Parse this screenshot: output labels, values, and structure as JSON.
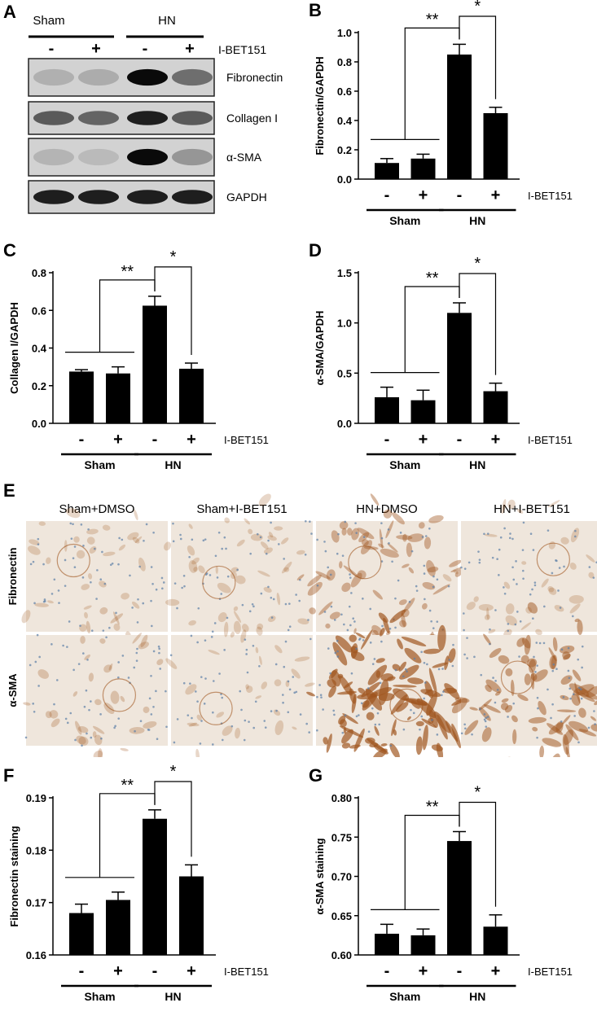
{
  "panels": {
    "A": {
      "letter": "A",
      "groups": [
        "Sham",
        "HN"
      ],
      "treatment_label": "I-BET151",
      "treatment_signs": [
        "-",
        "+",
        "-",
        "+"
      ],
      "bands": [
        "Fibronectin",
        "Collagen I",
        "α-SMA",
        "GAPDH"
      ],
      "band_intensity": [
        [
          0.12,
          0.14,
          0.95,
          0.45
        ],
        [
          0.55,
          0.5,
          0.85,
          0.55
        ],
        [
          0.1,
          0.07,
          0.95,
          0.25
        ],
        [
          0.85,
          0.85,
          0.85,
          0.85
        ]
      ]
    },
    "E": {
      "letter": "E",
      "columns": [
        "Sham+DMSO",
        "Sham+I-BET151",
        "HN+DMSO",
        "HN+I-BET151"
      ],
      "rows": [
        "Fibronectin",
        "α-SMA"
      ],
      "stain_level": [
        [
          0.15,
          0.15,
          0.45,
          0.15
        ],
        [
          0.2,
          0.15,
          0.9,
          0.6
        ]
      ],
      "colors": {
        "tissue": "#efe6dc",
        "stain": "#a0561f",
        "nuclei": "#5d7fa6"
      }
    }
  },
  "chart_data": [
    {
      "id": "B",
      "letter": "B",
      "type": "bar",
      "ylabel": "Fibronectin/GAPDH",
      "ylim": [
        0,
        1.0
      ],
      "yticks": [
        "0.0",
        "0.2",
        "0.4",
        "0.6",
        "0.8",
        "1.0"
      ],
      "values": [
        0.11,
        0.14,
        0.85,
        0.45
      ],
      "errors": [
        0.03,
        0.03,
        0.07,
        0.04
      ],
      "signs": [
        "-",
        "+",
        "-",
        "+"
      ],
      "treatment_label": "I-BET151",
      "groups": [
        "Sham",
        "HN"
      ],
      "sig": [
        "**",
        "*"
      ]
    },
    {
      "id": "C",
      "letter": "C",
      "type": "bar",
      "ylabel": "Collagen I/GAPDH",
      "ylim": [
        0,
        0.8
      ],
      "yticks": [
        "0.0",
        "0.2",
        "0.4",
        "0.6",
        "0.8"
      ],
      "values": [
        0.275,
        0.265,
        0.625,
        0.29
      ],
      "errors": [
        0.01,
        0.035,
        0.05,
        0.03
      ],
      "signs": [
        "-",
        "+",
        "-",
        "+"
      ],
      "treatment_label": "I-BET151",
      "groups": [
        "Sham",
        "HN"
      ],
      "sig": [
        "**",
        "*"
      ]
    },
    {
      "id": "D",
      "letter": "D",
      "type": "bar",
      "ylabel": "α-SMA/GAPDH",
      "ylim": [
        0,
        1.5
      ],
      "yticks": [
        "0.0",
        "0.5",
        "1.0",
        "1.5"
      ],
      "values": [
        0.26,
        0.23,
        1.1,
        0.32
      ],
      "errors": [
        0.1,
        0.1,
        0.1,
        0.08
      ],
      "signs": [
        "-",
        "+",
        "-",
        "+"
      ],
      "treatment_label": "I-BET151",
      "groups": [
        "Sham",
        "HN"
      ],
      "sig": [
        "**",
        "*"
      ]
    },
    {
      "id": "F",
      "letter": "F",
      "type": "bar",
      "ylabel": "Fibronectin staining",
      "ylim": [
        0.16,
        0.19
      ],
      "yticks": [
        "0.16",
        "0.17",
        "0.18",
        "0.19"
      ],
      "values": [
        0.168,
        0.1705,
        0.186,
        0.175
      ],
      "errors": [
        0.0017,
        0.0015,
        0.0017,
        0.0022
      ],
      "signs": [
        "-",
        "+",
        "-",
        "+"
      ],
      "treatment_label": "I-BET151",
      "groups": [
        "Sham",
        "HN"
      ],
      "sig": [
        "**",
        "*"
      ]
    },
    {
      "id": "G",
      "letter": "G",
      "type": "bar",
      "ylabel": "α-SMA staining",
      "ylim": [
        0.6,
        0.8
      ],
      "yticks": [
        "0.60",
        "0.65",
        "0.70",
        "0.75",
        "0.80"
      ],
      "values": [
        0.627,
        0.625,
        0.745,
        0.636
      ],
      "errors": [
        0.012,
        0.008,
        0.012,
        0.015
      ],
      "signs": [
        "-",
        "+",
        "-",
        "+"
      ],
      "treatment_label": "I-BET151",
      "groups": [
        "Sham",
        "HN"
      ],
      "sig": [
        "**",
        "*"
      ]
    }
  ]
}
